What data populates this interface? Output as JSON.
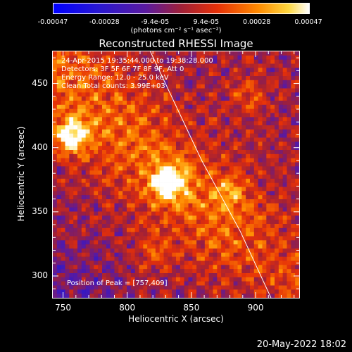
{
  "chart_data": {
    "type": "heatmap",
    "title": "Reconstructed RHESSI Image",
    "colorbar": {
      "ticks": [
        "-0.00047",
        "-0.00028",
        "-9.4e-05",
        "9.4e-05",
        "0.00028",
        "0.00047"
      ],
      "values": [
        -0.00047,
        -0.00028,
        -9.4e-05,
        9.4e-05,
        0.00028,
        0.00047
      ],
      "range": [
        -0.00047,
        0.00047
      ],
      "unit": "(photons cm⁻² s⁻¹ asec⁻²)"
    },
    "xlabel": "Heliocentric X (arcsec)",
    "ylabel": "Heliocentric Y (arcsec)",
    "xlim": [
      742,
      934
    ],
    "ylim": [
      283,
      475
    ],
    "xticks": [
      750,
      800,
      850,
      900
    ],
    "yticks": [
      300,
      350,
      400,
      450
    ],
    "annotations": [
      "24-Apr-2015 19:35:44.000 to 19:38:28.000",
      "Detectors: 3F 5F 6F 7F 8F 9F, Att 0",
      "Energy Range: 12.0 - 25.0 keV",
      "Clean    Total counts: 3.99E+03"
    ],
    "peak_label": "Position of Peak = [757,409]",
    "sources": [
      {
        "x": 757,
        "y": 409,
        "intensity": 0.00047
      },
      {
        "x": 832,
        "y": 372,
        "intensity": 0.00045
      },
      {
        "x": 880,
        "y": 365,
        "intensity": 0.0002
      },
      {
        "x": 895,
        "y": 440,
        "intensity": 0.00018
      },
      {
        "x": 820,
        "y": 320,
        "intensity": 0.00015
      }
    ],
    "limb_line": [
      [
        818,
        475
      ],
      [
        858,
        390
      ],
      [
        888,
        335
      ],
      [
        912,
        283
      ]
    ]
  },
  "date_stamp": "20-May-2022 18:02"
}
